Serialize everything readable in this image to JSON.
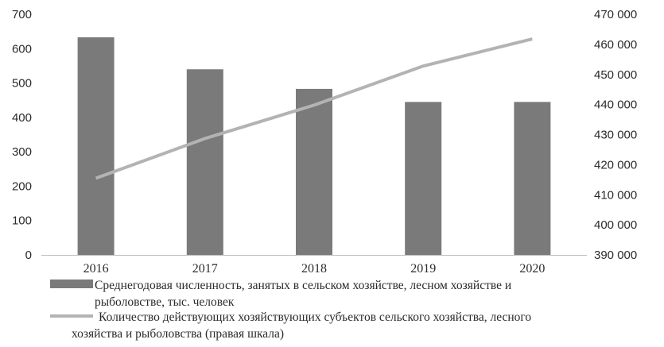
{
  "chart_data": {
    "type": "bar+line",
    "categories": [
      "2016",
      "2017",
      "2018",
      "2019",
      "2020"
    ],
    "series": [
      {
        "name": "Среднегодовая численность, занятых в сельском хозяйстве, лесном хозяйстве и рыболовстве, тыс. человек",
        "name_lines": [
          "Среднегодовая численность, занятых в сельском хозяйстве, лесном хозяйстве и",
          "рыболовстве, тыс. человек"
        ],
        "type": "bar",
        "axis": "left",
        "color": "#7a7a7a",
        "values": [
          633,
          540,
          483,
          445,
          445
        ]
      },
      {
        "name": "Количество действующих хозяйствующих субъектов сельского хозяйства, лесного хозяйства и рыболовства (правая шкала)",
        "name_lines": [
          "Количество действующих хозяйствующих субъектов сельского хозяйства, лесного",
          "хозяйства и рыболовства (правая шкала)"
        ],
        "type": "line",
        "axis": "right",
        "color": "#b3b3b3",
        "values": [
          415500,
          428700,
          439800,
          452800,
          461800
        ]
      }
    ],
    "y_left": {
      "ylim": [
        0,
        700
      ],
      "ticks": [
        "0",
        "100",
        "200",
        "300",
        "400",
        "500",
        "600",
        "700"
      ]
    },
    "y_right": {
      "ylim": [
        390000,
        470000
      ],
      "ticks": [
        "390 000",
        "400 000",
        "410 000",
        "420 000",
        "430 000",
        "440 000",
        "450 000",
        "460 000",
        "470 000"
      ]
    },
    "grid": false,
    "legend_position": "bottom"
  }
}
